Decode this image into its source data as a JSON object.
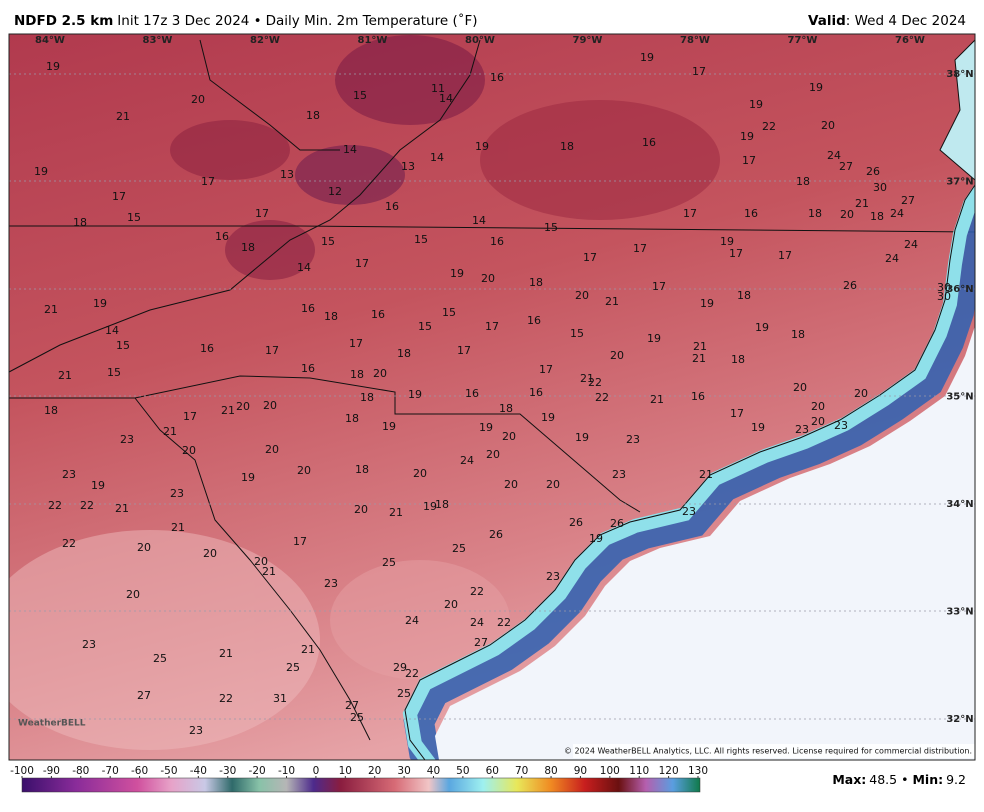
{
  "header": {
    "title": "NDFD 2.5 km",
    "init": "Init 17z 3 Dec 2024 •",
    "subtitle": "Daily Min. 2m Temperature (˚F)",
    "valid_label": "Valid",
    "valid_date": ": Wed 4 Dec 2024"
  },
  "lon_labels": [
    "84°W",
    "83°W",
    "82°W",
    "81°W",
    "80°W",
    "79°W",
    "78°W",
    "77°W",
    "76°W"
  ],
  "lat_labels": [
    "38°N",
    "37°N",
    "36°N",
    "35°N",
    "34°N",
    "33°N",
    "32°N"
  ],
  "temperatures": [
    19,
    20,
    21,
    15,
    11,
    14,
    16,
    19,
    17,
    18,
    19,
    22,
    19,
    20,
    19,
    14,
    14,
    13,
    19,
    18,
    16,
    17,
    19,
    17,
    13,
    12,
    24,
    27,
    26,
    30,
    27,
    18,
    17,
    15,
    17,
    16,
    18,
    14,
    15,
    17,
    16,
    18,
    20,
    18,
    24,
    21,
    16,
    18,
    15,
    15,
    16,
    19,
    17,
    17,
    17,
    17,
    24,
    24,
    14,
    17,
    19,
    20,
    18,
    17,
    20,
    21,
    26,
    30,
    30,
    19,
    18,
    19,
    21,
    16,
    18,
    16,
    15,
    15,
    17,
    16,
    19,
    14,
    15,
    18,
    15,
    16,
    17,
    17,
    18,
    17,
    19,
    21,
    21,
    18,
    20,
    21,
    15,
    16,
    18,
    20,
    17,
    21,
    22,
    20,
    20,
    18,
    19,
    16,
    16,
    18,
    22,
    21,
    16,
    17,
    19,
    23,
    20,
    20,
    23,
    18,
    17,
    21,
    20,
    20,
    18,
    19,
    19,
    20,
    19,
    19,
    23,
    23,
    21,
    20,
    20,
    20,
    24,
    23,
    19,
    19,
    20,
    18,
    20,
    23,
    21,
    23,
    22,
    22,
    21,
    20,
    20,
    20,
    21,
    19,
    18,
    26,
    26,
    23,
    21,
    22,
    20,
    20,
    17,
    26,
    19,
    25,
    20,
    21,
    25,
    20,
    23,
    23,
    22,
    20,
    24,
    24,
    22,
    23,
    25,
    21,
    21,
    25,
    27,
    29,
    22,
    27,
    22,
    31,
    25,
    27,
    25,
    23
  ],
  "colorbar": {
    "ticks": [
      -100,
      -90,
      -80,
      -70,
      -60,
      -50,
      -40,
      -30,
      -20,
      -10,
      0,
      10,
      20,
      30,
      40,
      50,
      60,
      70,
      80,
      90,
      100,
      110,
      120,
      130
    ]
  },
  "footer": {
    "max_label": "Max:",
    "max": 48.5,
    "sep": "•",
    "min_label": "Min:",
    "min": 9.2
  },
  "copyright": "© 2024 WeatherBELL Analytics, LLC. All rights reserved. License required for commercial distribution.",
  "logo": "WeatherBELL"
}
